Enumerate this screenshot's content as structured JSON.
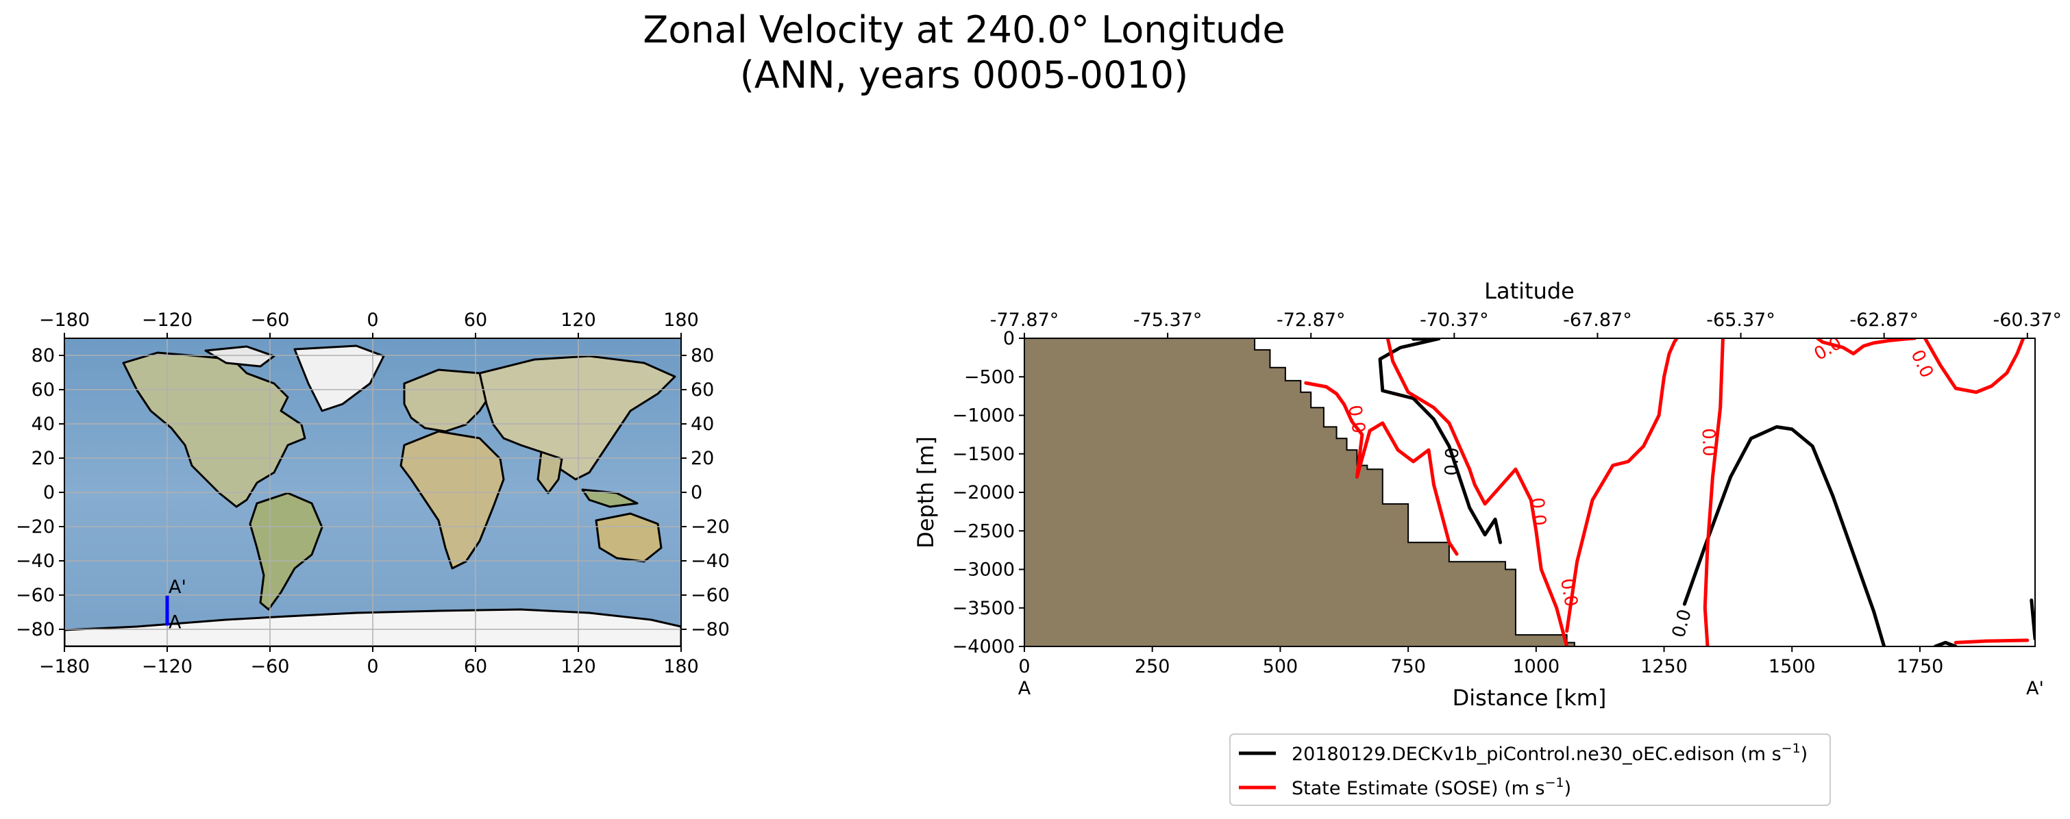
{
  "figure": {
    "title_line1": "Zonal Velocity at 240.0° Longitude",
    "title_line2": "(ANN, years 0005-0010)"
  },
  "colors": {
    "model": "#000000",
    "obs": "#ff0000",
    "land": "#8d7d61",
    "ocean": "#7fa7c9",
    "transect": "#0000ff",
    "grid": "#b0b0b0"
  },
  "chart_data": [
    {
      "type": "map",
      "title": "",
      "x_ticks": [
        "−180",
        "−120",
        "−60",
        "0",
        "60",
        "120",
        "180"
      ],
      "x_tick_values": [
        -180,
        -120,
        -60,
        0,
        60,
        120,
        180
      ],
      "y_ticks": [
        "80",
        "60",
        "40",
        "20",
        "0",
        "−20",
        "−40",
        "−60",
        "−80"
      ],
      "y_tick_values": [
        80,
        60,
        40,
        20,
        0,
        -20,
        -40,
        -60,
        -80
      ],
      "xlim": [
        -180,
        180
      ],
      "ylim": [
        -90,
        90
      ],
      "grid": true,
      "transect": {
        "lon": -120,
        "lat_start": -77.87,
        "lat_end": -60.37,
        "start_label": "A",
        "end_label": "A'"
      }
    },
    {
      "type": "line",
      "title": "",
      "xlabel": "Distance [km]",
      "ylabel": "Depth [m]",
      "top_xlabel": "Latitude",
      "xlim": [
        0,
        1975
      ],
      "ylim": [
        -4000,
        0
      ],
      "x_tick_values": [
        0,
        250,
        500,
        750,
        1000,
        1250,
        1500,
        1750
      ],
      "x_ticks": [
        "0",
        "250",
        "500",
        "750",
        "1000",
        "1250",
        "1500",
        "1750"
      ],
      "y_tick_values": [
        0,
        -500,
        -1000,
        -1500,
        -2000,
        -2500,
        -3000,
        -3500,
        -4000
      ],
      "y_ticks": [
        "0",
        "−500",
        "−1000",
        "−1500",
        "−2000",
        "−2500",
        "−3000",
        "−3500",
        "−4000"
      ],
      "top_tick_positions_km": [
        0,
        280,
        560,
        840,
        1120,
        1400,
        1680,
        1960
      ],
      "top_ticks": [
        "-77.87°",
        "-75.37°",
        "-72.87°",
        "-70.37°",
        "-67.87°",
        "-65.37°",
        "-62.87°",
        "-60.37°"
      ],
      "endpoint_labels": {
        "start": "A",
        "end": "A'"
      },
      "bathymetry": {
        "x": [
          0,
          450,
          450,
          480,
          480,
          510,
          510,
          540,
          540,
          560,
          560,
          585,
          585,
          610,
          610,
          630,
          630,
          650,
          650,
          670,
          670,
          700,
          700,
          750,
          750,
          830,
          830,
          940,
          940,
          960,
          960,
          1060,
          1060,
          1075,
          1075
        ],
        "depth": [
          0,
          0,
          -150,
          -150,
          -380,
          -380,
          -550,
          -550,
          -700,
          -700,
          -900,
          -900,
          -1150,
          -1150,
          -1300,
          -1300,
          -1450,
          -1450,
          -1650,
          -1650,
          -1700,
          -1700,
          -2150,
          -2150,
          -2650,
          -2650,
          -2900,
          -2900,
          -3000,
          -3000,
          -3850,
          -3850,
          -3950,
          -3950,
          -4000
        ]
      },
      "series": [
        {
          "name": "20180129.DECKv1b_piControl.ne30_oEC.edison (m s⁻¹)",
          "legend_main": "20180129.DECKv1b_piControl.ne30_oEC.edison (m s",
          "legend_sup": "−1",
          "legend_tail": ")",
          "color": "#000000",
          "contours": [
            {
              "level": "0.0",
              "x": [
                760,
                810,
                735,
                695,
                700,
                760,
                800,
                830,
                850,
                870,
                900,
                920,
                930
              ],
              "y": [
                -10,
                -5,
                -120,
                -270,
                -680,
                -780,
                -1050,
                -1400,
                -1800,
                -2200,
                -2550,
                -2350,
                -2650
              ]
            },
            {
              "level": "0.0",
              "x": [
                1290,
                1330,
                1380,
                1420,
                1470,
                1500,
                1540,
                1580,
                1620,
                1660,
                1680
              ],
              "y": [
                -3450,
                -2700,
                -1800,
                -1300,
                -1150,
                -1180,
                -1400,
                -2050,
                -2800,
                -3550,
                -4000
              ]
            },
            {
              "level": "0.0",
              "x": [
                1780,
                1800,
                1820
              ],
              "y": [
                -4000,
                -3950,
                -4000
              ]
            },
            {
              "level": "0.0",
              "x": [
                1968,
                1975
              ],
              "y": [
                -3400,
                -3900
              ]
            }
          ],
          "contour_labels": [
            {
              "text": "0.0",
              "x": 835,
              "y": -1600,
              "rotation": -88
            },
            {
              "text": "0.0",
              "x": 1284,
              "y": -3700,
              "rotation": -75
            }
          ]
        },
        {
          "name": "State Estimate (SOSE) (m s⁻¹)",
          "legend_main": "State Estimate (SOSE) (m s",
          "legend_sup": "−1",
          "legend_tail": ")",
          "color": "#ff0000",
          "contours": [
            {
              "level": "0.0",
              "x": [
                550,
                590,
                610,
                625,
                640,
                660
              ],
              "y": [
                -580,
                -630,
                -720,
                -860,
                -1080,
                -1250
              ]
            },
            {
              "level": "0.0",
              "x": [
                710,
                720,
                750,
                800,
                830,
                850,
                870,
                880,
                900,
                940,
                960,
                990,
                1000,
                1010,
                1040,
                1060
              ],
              "y": [
                0,
                -300,
                -700,
                -900,
                -1100,
                -1400,
                -1700,
                -1900,
                -2150,
                -1850,
                -1700,
                -2100,
                -2500,
                -3000,
                -3500,
                -4000
              ]
            },
            {
              "level": "0.0",
              "x": [
                660,
                650,
                675,
                700,
                730,
                760,
                790,
                800,
                820,
                830,
                845
              ],
              "y": [
                -1250,
                -1800,
                -1200,
                -1100,
                -1450,
                -1600,
                -1450,
                -1900,
                -2400,
                -2650,
                -2800
              ]
            },
            {
              "level": "0.0",
              "x": [
                1060,
                1080,
                1110,
                1150,
                1180,
                1210,
                1240,
                1250,
                1260,
                1270,
                1275
              ],
              "y": [
                -3800,
                -2900,
                -2100,
                -1650,
                -1600,
                -1400,
                -1000,
                -500,
                -200,
                -50,
                0
              ]
            },
            {
              "level": "0.0",
              "x": [
                1365,
                1360,
                1345,
                1335,
                1330,
                1335
              ],
              "y": [
                0,
                -900,
                -1800,
                -2700,
                -3500,
                -4000
              ]
            },
            {
              "level": "0.0",
              "x": [
                1550,
                1560,
                1600,
                1620,
                1640,
                1660,
                1690,
                1720,
                1740
              ],
              "y": [
                0,
                -50,
                -120,
                -200,
                -100,
                -60,
                -30,
                -10,
                0
              ]
            },
            {
              "level": "0.0",
              "x": [
                1760,
                1790,
                1820,
                1860,
                1890,
                1920,
                1940,
                1952
              ],
              "y": [
                0,
                -350,
                -650,
                -700,
                -620,
                -450,
                -200,
                0
              ]
            },
            {
              "level": "0.0",
              "x": [
                1820,
                1880,
                1960
              ],
              "y": [
                -3950,
                -3930,
                -3920
              ]
            }
          ],
          "contour_labels": [
            {
              "text": "0.0",
              "x": 650,
              "y": -1050,
              "rotation": 80
            },
            {
              "text": "0.0",
              "x": 1005,
              "y": -2250,
              "rotation": 85
            },
            {
              "text": "0.0",
              "x": 1065,
              "y": -3300,
              "rotation": 80
            },
            {
              "text": "0.0",
              "x": 1338,
              "y": -1350,
              "rotation": 88
            },
            {
              "text": "0.0",
              "x": 1570,
              "y": -130,
              "rotation": -30
            },
            {
              "text": "0.0",
              "x": 1755,
              "y": -330,
              "rotation": 65
            }
          ]
        }
      ]
    }
  ]
}
